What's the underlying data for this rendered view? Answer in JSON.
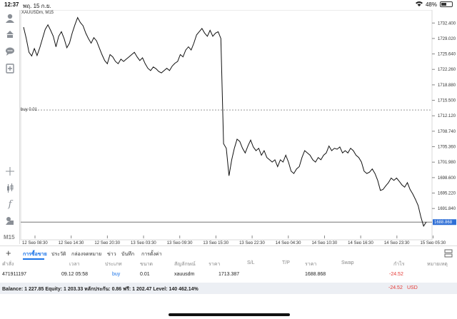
{
  "status": {
    "time": "12:37",
    "date": "พฤ. 15 ก.ย.",
    "battery": "48%",
    "battery_level": 0.48
  },
  "chart": {
    "symbol": "XAUUSDm, M15",
    "buy_label": "buy 0.01",
    "last_price": "1688.868",
    "timeframe": "M15"
  },
  "chart_data": {
    "type": "line",
    "title": "",
    "xlabel": "",
    "ylabel": "",
    "x_ticks": [
      "12 Sep 08:30",
      "12 Sep 14:30",
      "12 Sep 20:30",
      "13 Sep 03:30",
      "13 Sep 09:30",
      "13 Sep 15:30",
      "13 Sep 22:30",
      "14 Sep 04:30",
      "14 Sep 10:30",
      "14 Sep 16:30",
      "14 Sep 23:30",
      "15 Sep 05:30"
    ],
    "y_ticks": [
      "1732.400",
      "1729.020",
      "1725.640",
      "1722.260",
      "1718.880",
      "1715.500",
      "1712.120",
      "1708.740",
      "1705.360",
      "1701.980",
      "1698.600",
      "1695.220",
      "1691.840",
      "1688.868"
    ],
    "ylim": [
      1687.5,
      1734.0
    ],
    "buy_level": 1713.387,
    "current": 1688.868,
    "series": [
      {
        "values": [
          1731.5,
          1729.0,
          1726.0,
          1725.2,
          1726.8,
          1725.3,
          1727.0,
          1729.0,
          1731.0,
          1732.0,
          1730.8,
          1729.5,
          1727.2,
          1729.5,
          1730.5,
          1729.0,
          1727.0,
          1728.0,
          1730.2,
          1732.0,
          1733.6,
          1732.5,
          1731.8,
          1730.2,
          1729.0,
          1728.0,
          1729.2,
          1728.5,
          1727.0,
          1725.5,
          1724.2,
          1723.5,
          1725.5,
          1725.0,
          1724.0,
          1723.5,
          1724.5,
          1724.0,
          1724.5,
          1725.0,
          1725.5,
          1726.0,
          1725.0,
          1724.2,
          1724.8,
          1723.5,
          1722.5,
          1722.0,
          1722.8,
          1722.4,
          1721.8,
          1721.5,
          1722.0,
          1722.5,
          1722.0,
          1723.0,
          1723.6,
          1724.0,
          1725.5,
          1725.0,
          1726.5,
          1727.2,
          1726.5,
          1728.0,
          1729.8,
          1730.5,
          1731.2,
          1730.2,
          1729.5,
          1730.8,
          1729.5,
          1730.2,
          1730.5,
          1729.0,
          1706.0,
          1705.0,
          1699.0,
          1702.5,
          1705.0,
          1707.0,
          1706.5,
          1705.0,
          1704.0,
          1705.5,
          1706.8,
          1705.3,
          1704.5,
          1705.0,
          1703.5,
          1704.5,
          1703.0,
          1702.5,
          1702.0,
          1702.5,
          1701.0,
          1702.5,
          1702.0,
          1703.5,
          1702.0,
          1700.0,
          1699.5,
          1700.5,
          1701.0,
          1703.0,
          1704.5,
          1704.0,
          1703.5,
          1702.5,
          1702.0,
          1703.0,
          1702.5,
          1703.5,
          1704.0,
          1705.5,
          1704.5,
          1705.0,
          1704.8,
          1705.3,
          1704.0,
          1704.5,
          1704.0,
          1705.0,
          1704.5,
          1703.5,
          1703.0,
          1702.0,
          1700.0,
          1699.5,
          1699.8,
          1700.5,
          1699.5,
          1698.0,
          1695.8,
          1696.0,
          1696.8,
          1697.5,
          1698.5,
          1698.0,
          1698.5,
          1697.8,
          1697.0,
          1696.5,
          1697.5,
          1696.0,
          1695.0,
          1693.8,
          1692.5,
          1690.0,
          1688.0,
          1688.9
        ],
        "x_range": [
          0,
          1
        ]
      }
    ]
  },
  "tabs": {
    "items": [
      {
        "label": "การซื้อขาย",
        "active": true
      },
      {
        "label": "ประวัติ",
        "active": false
      },
      {
        "label": "กล่องจดหมาย",
        "active": false
      },
      {
        "label": "ข่าว",
        "active": false
      },
      {
        "label": "บันทึก",
        "active": false
      },
      {
        "label": "การตั้งค่า",
        "active": false
      }
    ]
  },
  "table": {
    "headers": {
      "order": "คำสั่ง",
      "time": "เวลา",
      "type": "ประเภท",
      "size": "ขนาด",
      "symbol": "สัญลักษณ์",
      "price": "ราคา",
      "sl": "S/L",
      "tp": "T/P",
      "price2": "ราคา",
      "swap": "Swap",
      "profit": "กำไร",
      "comment": "หมายเหตุ"
    },
    "row": {
      "order": "471911197",
      "time": "09.12 05:58",
      "type": "buy",
      "size": "0.01",
      "symbol": "xauusdm",
      "price": "1713.387",
      "price2": "1688.868",
      "profit": "-24.52"
    }
  },
  "balance": {
    "text": "Balance: 1 227.85 Equity: 1 203.33 หลักประกัน: 0.86 ฟรี: 1 202.47 Level: 140 462.14%",
    "profit": "-24.52",
    "currency": "USD"
  },
  "colors": {
    "accent": "#1a73e8",
    "negative": "#e53935",
    "grid": "#cfcfcf"
  }
}
